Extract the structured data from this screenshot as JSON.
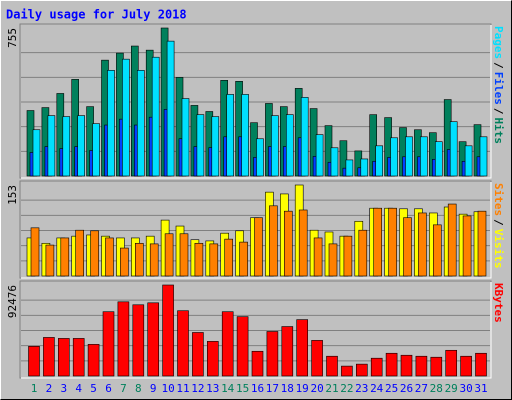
{
  "title": "Daily usage for July 2018",
  "legend_separator": "/",
  "chart_data": [
    {
      "type": "bar",
      "ylim": [
        0,
        755
      ],
      "yticks": [
        755
      ],
      "series": [
        {
          "name": "Hits",
          "color": "#00805c",
          "values": [
            334,
            349,
            421,
            493,
            354,
            591,
            627,
            663,
            642,
            755,
            503,
            360,
            329,
            488,
            483,
            272,
            370,
            354,
            447,
            344,
            257,
            180,
            128,
            313,
            298,
            247,
            236,
            221,
            390,
            175,
            262
          ]
        },
        {
          "name": "Files",
          "color": "#0040ff",
          "values": [
            120,
            150,
            140,
            150,
            130,
            260,
            290,
            260,
            300,
            340,
            190,
            150,
            145,
            200,
            200,
            95,
            150,
            150,
            195,
            100,
            70,
            40,
            42,
            75,
            95,
            98,
            98,
            85,
            135,
            75,
            98
          ]
        },
        {
          "name": "Pages",
          "color": "#00e0ff",
          "values": [
            236,
            308,
            303,
            308,
            267,
            539,
            596,
            539,
            606,
            688,
            395,
            313,
            303,
            416,
            416,
            190,
            308,
            313,
            401,
            211,
            144,
            82,
            87,
            154,
            195,
            200,
            200,
            175,
            277,
            154,
            200
          ]
        }
      ]
    },
    {
      "type": "bar",
      "ylim": [
        0,
        153
      ],
      "yticks": [
        153
      ],
      "series": [
        {
          "name": "Visits",
          "color": "#ffff00",
          "values": [
            64,
            55,
            64,
            67,
            69,
            67,
            64,
            64,
            67,
            94,
            84,
            61,
            59,
            72,
            76,
            98,
            141,
            138,
            153,
            77,
            74,
            67,
            92,
            114,
            114,
            113,
            113,
            106,
            116,
            104,
            108
          ]
        },
        {
          "name": "Sites",
          "color": "#ff8000",
          "values": [
            81,
            52,
            64,
            77,
            76,
            64,
            47,
            55,
            54,
            71,
            71,
            55,
            54,
            62,
            57,
            98,
            118,
            109,
            111,
            64,
            54,
            67,
            77,
            114,
            114,
            98,
            106,
            86,
            121,
            101,
            109
          ]
        }
      ]
    },
    {
      "type": "bar",
      "ylim": [
        0,
        92476
      ],
      "yticks": [
        92476
      ],
      "categories": [
        "1",
        "2",
        "3",
        "4",
        "5",
        "6",
        "7",
        "8",
        "9",
        "10",
        "11",
        "12",
        "13",
        "14",
        "15",
        "16",
        "17",
        "18",
        "19",
        "20",
        "21",
        "22",
        "23",
        "24",
        "25",
        "26",
        "27",
        "28",
        "29",
        "30",
        "31"
      ],
      "category_colors": [
        "#00805c",
        "#0000ff",
        "#0000ff",
        "#0000ff",
        "#0000ff",
        "#0000ff",
        "#00805c",
        "#00805c",
        "#0000ff",
        "#0000ff",
        "#0000ff",
        "#0000ff",
        "#0000ff",
        "#00805c",
        "#00805c",
        "#0000ff",
        "#0000ff",
        "#0000ff",
        "#0000ff",
        "#0000ff",
        "#00805c",
        "#00805c",
        "#0000ff",
        "#0000ff",
        "#0000ff",
        "#0000ff",
        "#0000ff",
        "#00805c",
        "#00805c",
        "#0000ff",
        "#0000ff"
      ],
      "series": [
        {
          "name": "KBytes",
          "color": "#ff0000",
          "values": [
            30155,
            39202,
            38197,
            38197,
            32166,
            65336,
            75388,
            72372,
            74383,
            92476,
            66341,
            44228,
            35181,
            65336,
            60310,
            25129,
            45233,
            50259,
            57295,
            36186,
            20103,
            10052,
            12062,
            18093,
            23119,
            21108,
            20103,
            19098,
            26134,
            20103,
            23119
          ]
        }
      ]
    }
  ]
}
